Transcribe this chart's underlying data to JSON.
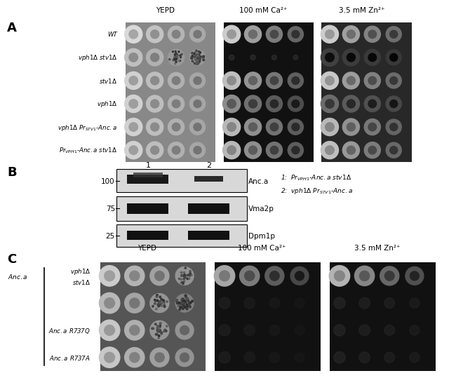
{
  "bg_color": "#ffffff",
  "panel_A": {
    "col_headers": [
      "YEPD",
      "100 mM Ca²⁺",
      "3.5 mM Zn²⁺"
    ],
    "row_labels": [
      "WT",
      "vph1Δ stv1Δ",
      "stv1Δ",
      "vph1Δ",
      "vph1Δ Pr_{STV1}-Anc.a",
      "Pr_{VPH1}-Anc.a stv1Δ"
    ],
    "n_rows": 6,
    "n_spots": 4,
    "group_bg_colors": [
      "#888888",
      "#111111",
      "#222222"
    ]
  },
  "panel_B": {
    "lane_labels": [
      "1",
      "2"
    ],
    "band_labels": [
      "Anc.a",
      "Vma2p",
      "Dpm1p"
    ],
    "mw_labels": [
      "100",
      "75",
      "25"
    ],
    "legend_line1": "1:  Pr_{VPH1}-Anc.a stv1Δ",
    "legend_line2": "2:  vph1Δ Pr_{STV1}-Anc.a"
  },
  "panel_C": {
    "col_headers": [
      "YEPD",
      "100 mM Ca²⁺",
      "3.5 mM Zn²⁺"
    ],
    "n_rows": 4,
    "n_spots": 4,
    "group_bg_colors": [
      "#555555",
      "#111111",
      "#111111"
    ]
  },
  "figsize": [
    6.5,
    5.29
  ],
  "dpi": 100
}
